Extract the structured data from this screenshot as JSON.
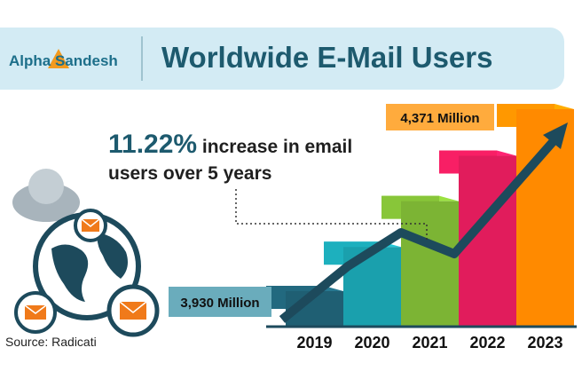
{
  "header": {
    "logo": "Alpha Sandesh",
    "title": "Worldwide E-Mail Users"
  },
  "headline": {
    "percent": "11.22%",
    "line1_rest": " increase in email",
    "line2": "users over 5 years"
  },
  "source": "Source: Radicati",
  "colors": {
    "header_bg": "#d3ebf4",
    "title": "#1d5a6e",
    "arrow": "#1d4a5c",
    "steps": [
      "#1f5f73",
      "#1aa0ad",
      "#7cb434",
      "#e11c5c",
      "#ff8a00"
    ]
  },
  "icons": [
    "user-avatar-icon",
    "globe-icon",
    "envelope-icon",
    "upward-arrow-icon"
  ],
  "chart_data": {
    "type": "bar",
    "categories": [
      "2019",
      "2020",
      "2021",
      "2022",
      "2023"
    ],
    "values": [
      3930,
      4037,
      4148,
      4258,
      4371
    ],
    "unit": "Million",
    "annotations": [
      {
        "category": "2019",
        "label": "3,930 Million"
      },
      {
        "category": "2023",
        "label": "4,371 Million"
      }
    ],
    "trend": "increasing"
  }
}
